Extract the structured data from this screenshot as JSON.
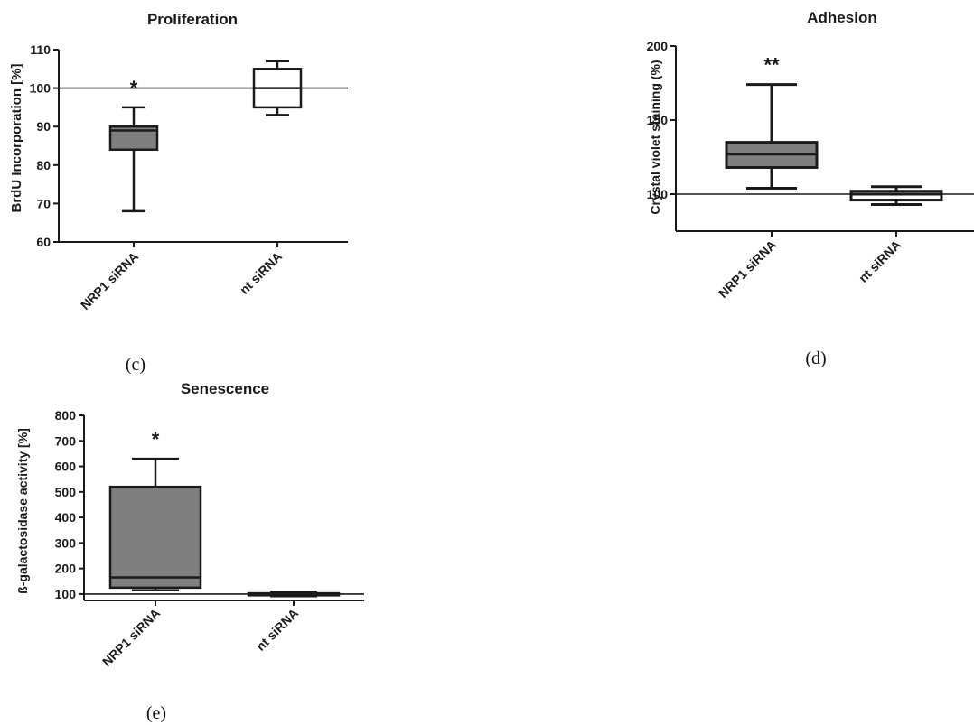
{
  "colors": {
    "box_treated": "#7f7f7f",
    "box_control": "#ffffff",
    "stroke": "#1a1a1a"
  },
  "chart_data": [
    {
      "panel": "c",
      "type": "box",
      "title": "Proliferation",
      "ylabel": "BrdU Incorporation [%]",
      "ylim": [
        60,
        110
      ],
      "yticks": [
        60,
        70,
        80,
        90,
        100,
        110
      ],
      "reference_line": 100,
      "categories": [
        "NRP1 siRNA",
        "nt siRNA"
      ],
      "boxes": [
        {
          "category": "NRP1 siRNA",
          "min": 68,
          "q1": 84,
          "median": 89,
          "q3": 90,
          "max": 95,
          "fill": "#7f7f7f",
          "annotation": "*"
        },
        {
          "category": "nt siRNA",
          "min": 93,
          "q1": 95,
          "median": 100,
          "q3": 105,
          "max": 107,
          "fill": "#ffffff",
          "annotation": ""
        }
      ]
    },
    {
      "panel": "d",
      "type": "box",
      "title": "Adhesion",
      "ylabel": "Crystal violet staining (%)",
      "ylim": [
        75,
        200
      ],
      "yticks": [
        100,
        150,
        200
      ],
      "reference_line": 100,
      "categories": [
        "NRP1 siRNA",
        "nt siRNA"
      ],
      "boxes": [
        {
          "category": "NRP1 siRNA",
          "min": 104,
          "q1": 118,
          "median": 127,
          "q3": 135,
          "max": 174,
          "fill": "#7f7f7f",
          "annotation": "**"
        },
        {
          "category": "nt siRNA",
          "min": 93,
          "q1": 96,
          "median": 100,
          "q3": 102,
          "max": 105,
          "fill": "#ffffff",
          "annotation": ""
        }
      ]
    },
    {
      "panel": "e",
      "type": "box",
      "title": "Senescence",
      "ylabel": "ß-galactosidase activity [%]",
      "ylim": [
        75,
        800
      ],
      "yticks": [
        100,
        200,
        300,
        400,
        500,
        600,
        700,
        800
      ],
      "reference_line": 100,
      "categories": [
        "NRP1 siRNA",
        "nt siRNA"
      ],
      "boxes": [
        {
          "category": "NRP1 siRNA",
          "min": 115,
          "q1": 125,
          "median": 165,
          "q3": 520,
          "max": 630,
          "fill": "#7f7f7f",
          "annotation": "*"
        },
        {
          "category": "nt siRNA",
          "min": 92,
          "q1": 95,
          "median": 100,
          "q3": 103,
          "max": 106,
          "fill": "#ffffff",
          "annotation": ""
        }
      ]
    }
  ],
  "panel_labels": {
    "c": "(c)",
    "d": "(d)",
    "e": "(e)"
  }
}
